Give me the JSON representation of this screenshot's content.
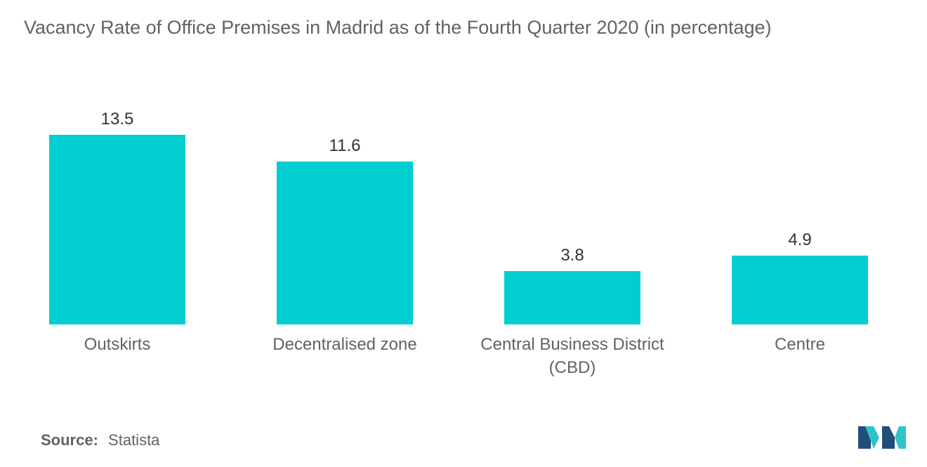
{
  "title": "Vacancy Rate of Office Premises in Madrid as of the Fourth Quarter 2020 (in percentage)",
  "source": {
    "label": "Source:",
    "value": "Statista"
  },
  "colors": {
    "bar": "#00CED1",
    "text": "#5f6368",
    "logo_dark": "#1f4e79",
    "logo_light": "#2ec4c9"
  },
  "logo": {
    "icon": "mordor-intelligence-logo-icon"
  },
  "chart_data": {
    "type": "bar",
    "title": "Vacancy Rate of Office Premises in Madrid as of the Fourth Quarter 2020 (in percentage)",
    "categories": [
      "Outskirts",
      "Decentralised zone",
      "Central Business District (CBD)",
      "Centre"
    ],
    "category_lines": [
      [
        "Outskirts"
      ],
      [
        "Decentralised zone"
      ],
      [
        "Central Business District",
        "(CBD)"
      ],
      [
        "Centre"
      ]
    ],
    "values": [
      13.5,
      11.6,
      3.8,
      4.9
    ],
    "value_labels": [
      "13.5",
      "11.6",
      "3.8",
      "4.9"
    ],
    "xlabel": "",
    "ylabel": "",
    "ylim": [
      0,
      15
    ],
    "grid": false,
    "legend": "none"
  }
}
